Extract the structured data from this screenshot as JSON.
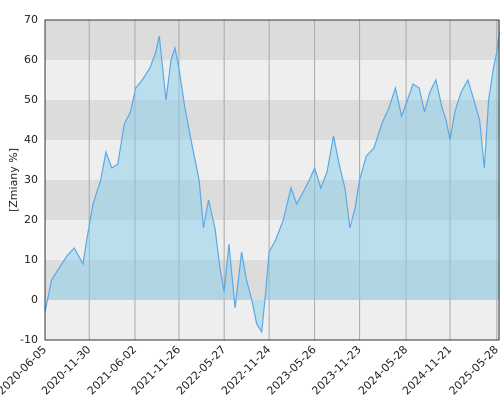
{
  "chart_data": {
    "type": "area",
    "ylabel": "[Zmiany %]",
    "x": [
      "2020-06-05",
      "2020-07-01",
      "2020-08-01",
      "2020-09-01",
      "2020-10-01",
      "2020-11-05",
      "2020-11-20",
      "2020-12-15",
      "2021-01-15",
      "2021-02-05",
      "2021-03-01",
      "2021-03-25",
      "2021-04-20",
      "2021-05-15",
      "2021-06-05",
      "2021-07-01",
      "2021-08-01",
      "2021-08-25",
      "2021-09-08",
      "2021-10-05",
      "2021-10-25",
      "2021-11-10",
      "2021-11-26",
      "2021-12-20",
      "2022-01-20",
      "2022-02-15",
      "2022-03-05",
      "2022-03-25",
      "2022-04-20",
      "2022-05-10",
      "2022-05-27",
      "2022-06-15",
      "2022-07-10",
      "2022-08-05",
      "2022-08-25",
      "2022-09-15",
      "2022-10-05",
      "2022-10-25",
      "2022-11-10",
      "2022-11-24",
      "2022-12-20",
      "2023-01-20",
      "2023-02-20",
      "2023-03-15",
      "2023-04-10",
      "2023-05-05",
      "2023-05-26",
      "2023-06-20",
      "2023-07-15",
      "2023-08-10",
      "2023-09-05",
      "2023-09-25",
      "2023-10-15",
      "2023-11-05",
      "2023-11-23",
      "2023-12-20",
      "2024-01-20",
      "2024-02-20",
      "2024-03-20",
      "2024-04-15",
      "2024-05-10",
      "2024-05-28",
      "2024-06-25",
      "2024-07-20",
      "2024-08-10",
      "2024-09-01",
      "2024-09-25",
      "2024-10-20",
      "2024-11-05",
      "2024-11-21",
      "2024-12-10",
      "2025-01-05",
      "2025-02-01",
      "2025-02-25",
      "2025-03-20",
      "2025-04-08",
      "2025-04-25",
      "2025-05-15",
      "2025-05-28",
      "2025-06-08"
    ],
    "values": [
      -3,
      5,
      8,
      11,
      13,
      9,
      15,
      24,
      30,
      37,
      33,
      34,
      44,
      47,
      53,
      55,
      58,
      62,
      66,
      50,
      60,
      63,
      58,
      48,
      38,
      30,
      18,
      25,
      18,
      8,
      2,
      14,
      -2,
      12,
      5,
      0,
      -6,
      -8,
      2,
      12,
      15,
      20,
      28,
      24,
      27,
      30,
      33,
      28,
      32,
      41,
      33,
      28,
      18,
      23,
      30,
      36,
      38,
      44,
      48,
      53,
      46,
      49,
      54,
      53,
      47,
      52,
      55,
      48,
      45,
      40,
      47,
      52,
      55,
      50,
      45,
      33,
      50,
      58,
      62,
      67
    ],
    "color": "#5aa9e6",
    "xlim": [
      "2020-06-05",
      "2025-06-10"
    ],
    "xticks": [
      "2020-06-05",
      "2020-11-30",
      "2021-06-02",
      "2021-11-26",
      "2022-05-27",
      "2022-11-24",
      "2023-05-26",
      "2023-11-23",
      "2024-05-28",
      "2024-11-21",
      "2025-05-28"
    ],
    "ylim": [
      -10,
      70
    ],
    "yticks": [
      -10,
      0,
      10,
      20,
      30,
      40,
      50,
      60,
      70
    ],
    "grid": true
  }
}
